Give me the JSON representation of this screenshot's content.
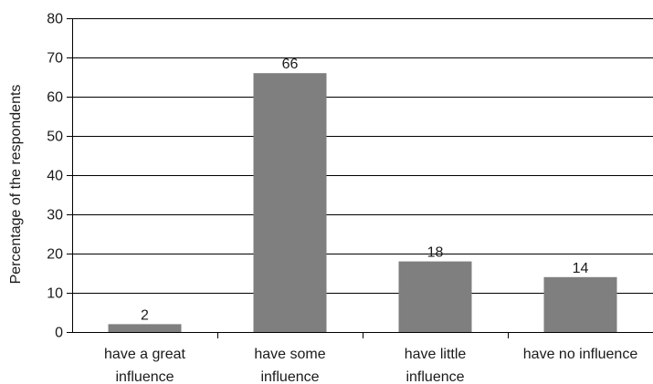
{
  "chart_data": {
    "type": "bar",
    "title": "",
    "xlabel": "",
    "ylabel": "Percentage of the respondents",
    "categories": [
      [
        "have a great",
        "influence"
      ],
      [
        "have some",
        "influence"
      ],
      [
        "have little",
        "influence"
      ],
      [
        "have no influence"
      ]
    ],
    "values": [
      2,
      66,
      18,
      14
    ],
    "data_labels": [
      "2",
      "66",
      "18",
      "14"
    ],
    "ylim": [
      0,
      80
    ],
    "yticks": [
      0,
      10,
      20,
      30,
      40,
      50,
      60,
      70,
      80
    ],
    "ytick_labels": [
      "0",
      "10",
      "20",
      "30",
      "40",
      "50",
      "60",
      "70",
      "80"
    ],
    "grid": true,
    "legend": "none",
    "bar_color": "#7f7f7f",
    "grid_color": "#000000"
  }
}
